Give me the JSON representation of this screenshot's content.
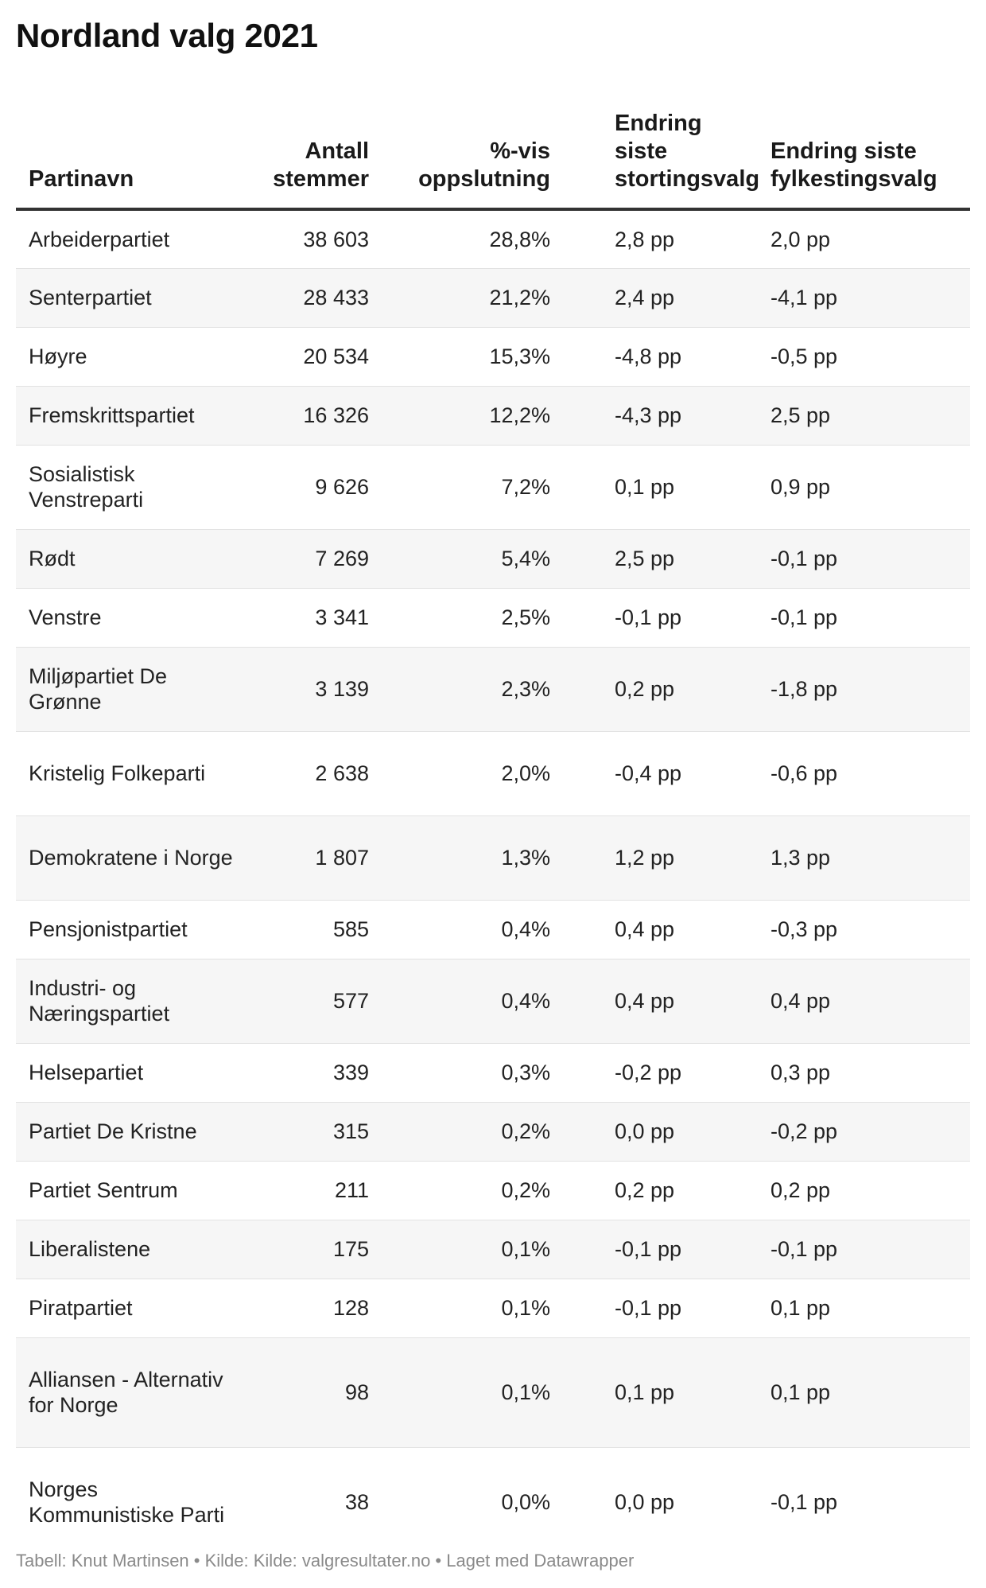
{
  "chart_data": {
    "type": "table",
    "title": "Nordland valg 2021",
    "columns": [
      "Partinavn",
      "Antall stemmer",
      "%-vis oppslutning",
      "Endring siste stortingsvalg",
      "Endring siste fylkestingsvalg"
    ],
    "rows": [
      {
        "name": "Arbeiderpartiet",
        "votes": "38 603",
        "pct": "28,8%",
        "chg_storting": "2,8 pp",
        "chg_fylke": "2,0 pp"
      },
      {
        "name": "Senterpartiet",
        "votes": "28 433",
        "pct": "21,2%",
        "chg_storting": "2,4 pp",
        "chg_fylke": "-4,1 pp"
      },
      {
        "name": "Høyre",
        "votes": "20 534",
        "pct": "15,3%",
        "chg_storting": "-4,8 pp",
        "chg_fylke": "-0,5 pp"
      },
      {
        "name": "Fremskrittspartiet",
        "votes": "16 326",
        "pct": "12,2%",
        "chg_storting": "-4,3 pp",
        "chg_fylke": "2,5 pp"
      },
      {
        "name": "Sosialistisk Venstreparti",
        "votes": "9 626",
        "pct": "7,2%",
        "chg_storting": "0,1 pp",
        "chg_fylke": "0,9 pp"
      },
      {
        "name": "Rødt",
        "votes": "7 269",
        "pct": "5,4%",
        "chg_storting": "2,5 pp",
        "chg_fylke": "-0,1 pp"
      },
      {
        "name": "Venstre",
        "votes": "3 341",
        "pct": "2,5%",
        "chg_storting": "-0,1 pp",
        "chg_fylke": "-0,1 pp"
      },
      {
        "name": "Miljøpartiet De Grønne",
        "votes": "3 139",
        "pct": "2,3%",
        "chg_storting": "0,2 pp",
        "chg_fylke": "-1,8 pp"
      },
      {
        "name": "Kristelig Folkeparti",
        "votes": "2 638",
        "pct": "2,0%",
        "chg_storting": "-0,4 pp",
        "chg_fylke": "-0,6 pp"
      },
      {
        "name": "Demokratene i Norge",
        "votes": "1 807",
        "pct": "1,3%",
        "chg_storting": "1,2 pp",
        "chg_fylke": "1,3 pp"
      },
      {
        "name": "Pensjonistpartiet",
        "votes": "585",
        "pct": "0,4%",
        "chg_storting": "0,4 pp",
        "chg_fylke": "-0,3 pp"
      },
      {
        "name": "Industri- og Næringspartiet",
        "votes": "577",
        "pct": "0,4%",
        "chg_storting": "0,4 pp",
        "chg_fylke": "0,4 pp"
      },
      {
        "name": "Helsepartiet",
        "votes": "339",
        "pct": "0,3%",
        "chg_storting": "-0,2 pp",
        "chg_fylke": "0,3 pp"
      },
      {
        "name": "Partiet De Kristne",
        "votes": "315",
        "pct": "0,2%",
        "chg_storting": "0,0 pp",
        "chg_fylke": "-0,2 pp"
      },
      {
        "name": "Partiet Sentrum",
        "votes": "211",
        "pct": "0,2%",
        "chg_storting": "0,2 pp",
        "chg_fylke": "0,2 pp"
      },
      {
        "name": "Liberalistene",
        "votes": "175",
        "pct": "0,1%",
        "chg_storting": "-0,1 pp",
        "chg_fylke": "-0,1 pp"
      },
      {
        "name": "Piratpartiet",
        "votes": "128",
        "pct": "0,1%",
        "chg_storting": "-0,1 pp",
        "chg_fylke": "0,1 pp"
      },
      {
        "name": "Alliansen - Alternativ for Norge",
        "votes": "98",
        "pct": "0,1%",
        "chg_storting": "0,1 pp",
        "chg_fylke": "0,1 pp"
      },
      {
        "name": "Norges Kommunistiske Parti",
        "votes": "38",
        "pct": "0,0%",
        "chg_storting": "0,0 pp",
        "chg_fylke": "-0,1 pp"
      }
    ]
  },
  "footer": "Tabell: Knut Martinsen • Kilde: Kilde: valgresultater.no • Laget med Datawrapper"
}
